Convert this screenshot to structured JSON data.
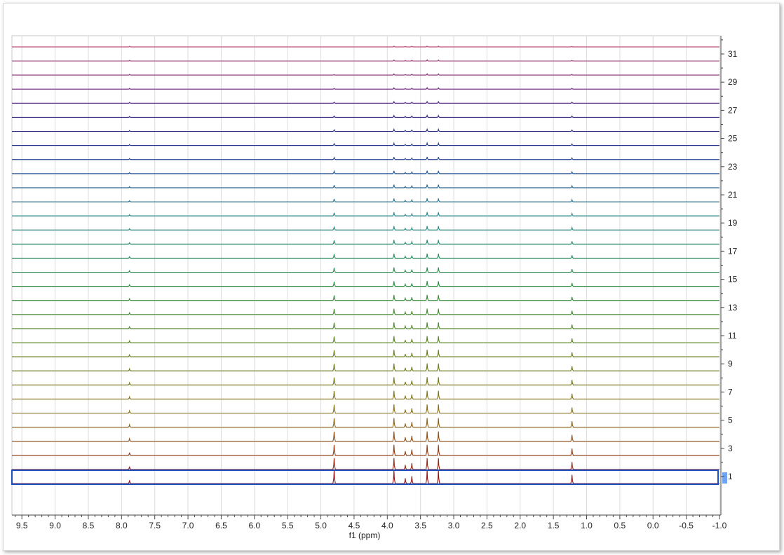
{
  "chart_data": {
    "type": "line",
    "subtype": "stacked-nmr-spectra",
    "xlabel": "f1 (ppm)",
    "ylabel": "",
    "xlim": [
      9.65,
      -1.0
    ],
    "x_reversed": true,
    "x_ticks": [
      "9.5",
      "9.0",
      "8.5",
      "8.0",
      "7.5",
      "7.0",
      "6.5",
      "6.0",
      "5.5",
      "5.0",
      "4.5",
      "4.0",
      "3.5",
      "3.0",
      "2.5",
      "2.0",
      "1.5",
      "1.0",
      "0.5",
      "0.0",
      "-0.5",
      "-1.0"
    ],
    "y_ticks": [
      "1",
      "3",
      "5",
      "7",
      "9",
      "11",
      "13",
      "15",
      "17",
      "19",
      "21",
      "23",
      "25",
      "27",
      "29",
      "31"
    ],
    "grid": true,
    "selected_trace": "1",
    "trace_count": 32,
    "trace_color_start": "#8b0000",
    "trace_color_end": "#c0407a",
    "selection_color": "#1f4fbf",
    "peaks": [
      {
        "ppm": 7.88,
        "height_first": 0.25,
        "height_last": 0.04
      },
      {
        "ppm": 4.8,
        "height_first": 1.0,
        "height_last": 0.0
      },
      {
        "ppm": 3.9,
        "height_first": 1.0,
        "height_last": 0.05
      },
      {
        "ppm": 3.73,
        "height_first": 0.4,
        "height_last": 0.03
      },
      {
        "ppm": 3.63,
        "height_first": 0.55,
        "height_last": 0.04
      },
      {
        "ppm": 3.4,
        "height_first": 1.0,
        "height_last": 0.06
      },
      {
        "ppm": 3.23,
        "height_first": 1.0,
        "height_last": 0.05
      },
      {
        "ppm": 1.22,
        "height_first": 0.65,
        "height_last": 0.03
      }
    ]
  }
}
